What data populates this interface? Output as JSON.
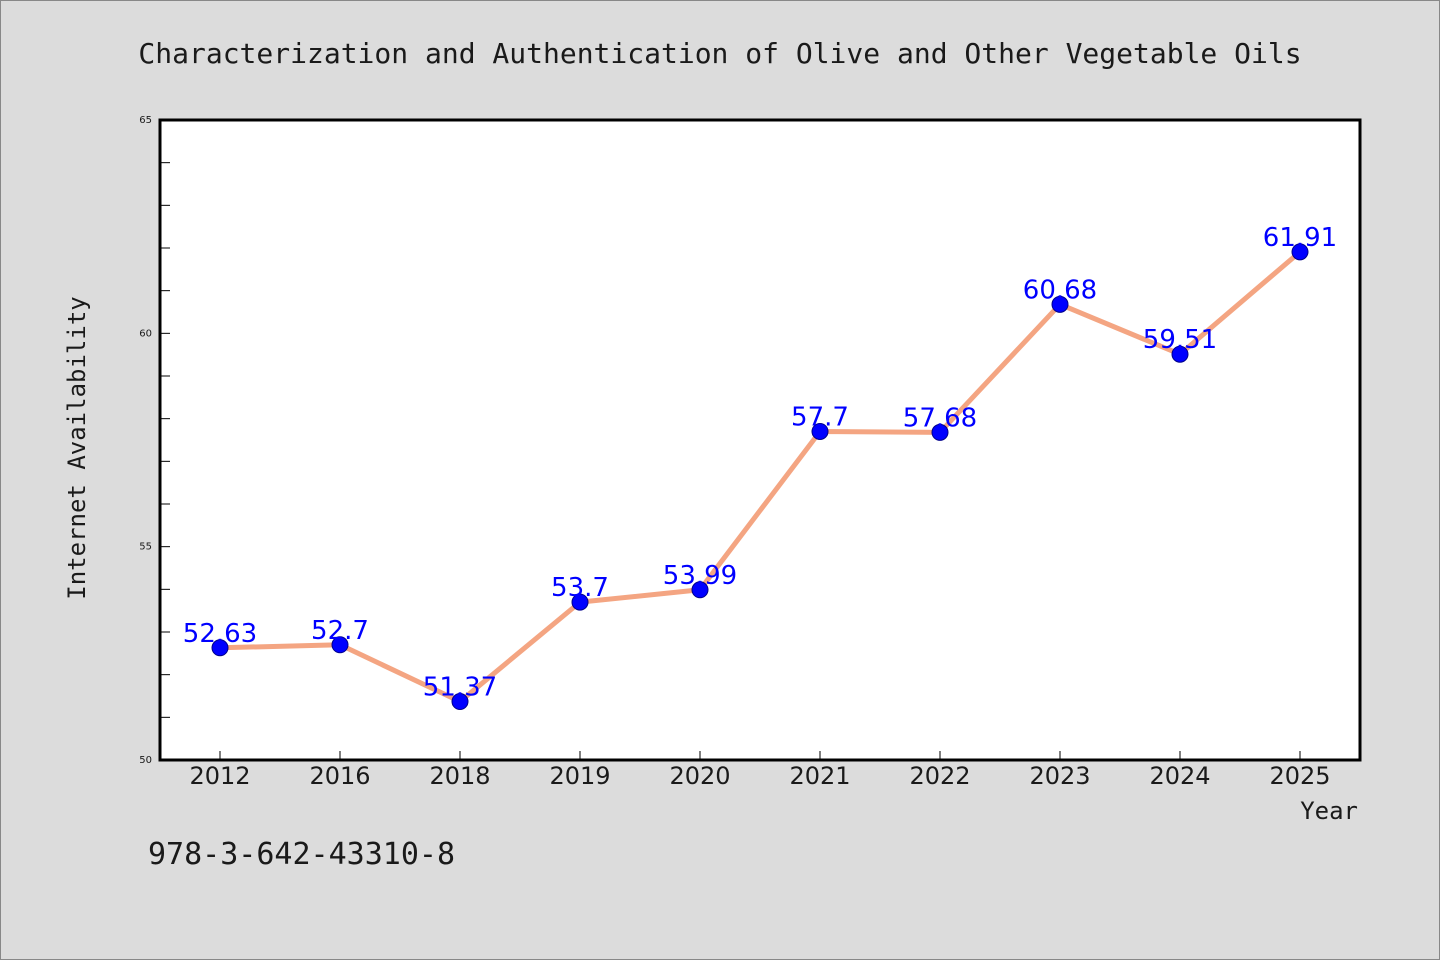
{
  "chart_data": {
    "type": "line",
    "title": "Characterization and Authentication of Olive and Other Vegetable Oils",
    "xlabel": "Year",
    "ylabel": "Internet Availability",
    "categories": [
      "2012",
      "2016",
      "2018",
      "2019",
      "2020",
      "2021",
      "2022",
      "2023",
      "2024",
      "2025"
    ],
    "series": [
      {
        "values": [
          52.63,
          52.7,
          51.37,
          53.7,
          53.99,
          57.7,
          57.68,
          60.68,
          59.51,
          61.91
        ],
        "labels": [
          "52.63",
          "52.7",
          "51.37",
          "53.7",
          "53.99",
          "57.7",
          "57.68",
          "60.68",
          "59.51",
          "61.91"
        ],
        "line_color": "#f4a582",
        "marker_color": "#0000ff"
      }
    ],
    "ylim": [
      50,
      65
    ],
    "yticks": [
      "50",
      "55",
      "60",
      "65"
    ],
    "grid": false,
    "legend": "none"
  },
  "footer": {
    "isbn": "978-3-642-43310-8"
  }
}
